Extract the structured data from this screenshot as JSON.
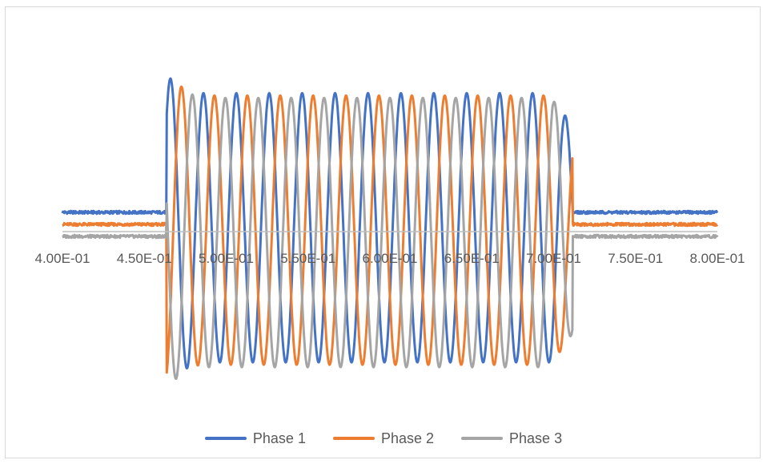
{
  "chart_data": {
    "type": "line",
    "title": "",
    "xlabel": "",
    "ylabel": "",
    "xlim": [
      0.4,
      0.8
    ],
    "x_ticks": [
      "4.00E-01",
      "4.50E-01",
      "5.00E-01",
      "5.50E-01",
      "6.00E-01",
      "6.50E-01",
      "7.00E-01",
      "7.50E-01",
      "8.00E-01"
    ],
    "y_axis_visible": false,
    "grid": false,
    "legend_position": "bottom",
    "signal_window": [
      0.4635,
      0.7115
    ],
    "cycle_period": 0.0201,
    "approx_cycles": 12.3,
    "series": [
      {
        "name": "Phase 1",
        "color": "#4472C4",
        "baseline": 0.08,
        "amplitude": 0.56,
        "first_peak": 0.67
      },
      {
        "name": "Phase 2",
        "color": "#ED7D31",
        "baseline": 0.03,
        "amplitude": 0.56,
        "first_peak": 0.3
      },
      {
        "name": "Phase 3",
        "color": "#A5A5A5",
        "baseline": -0.02,
        "amplitude": 0.56,
        "first_peak": 0.52
      }
    ]
  }
}
